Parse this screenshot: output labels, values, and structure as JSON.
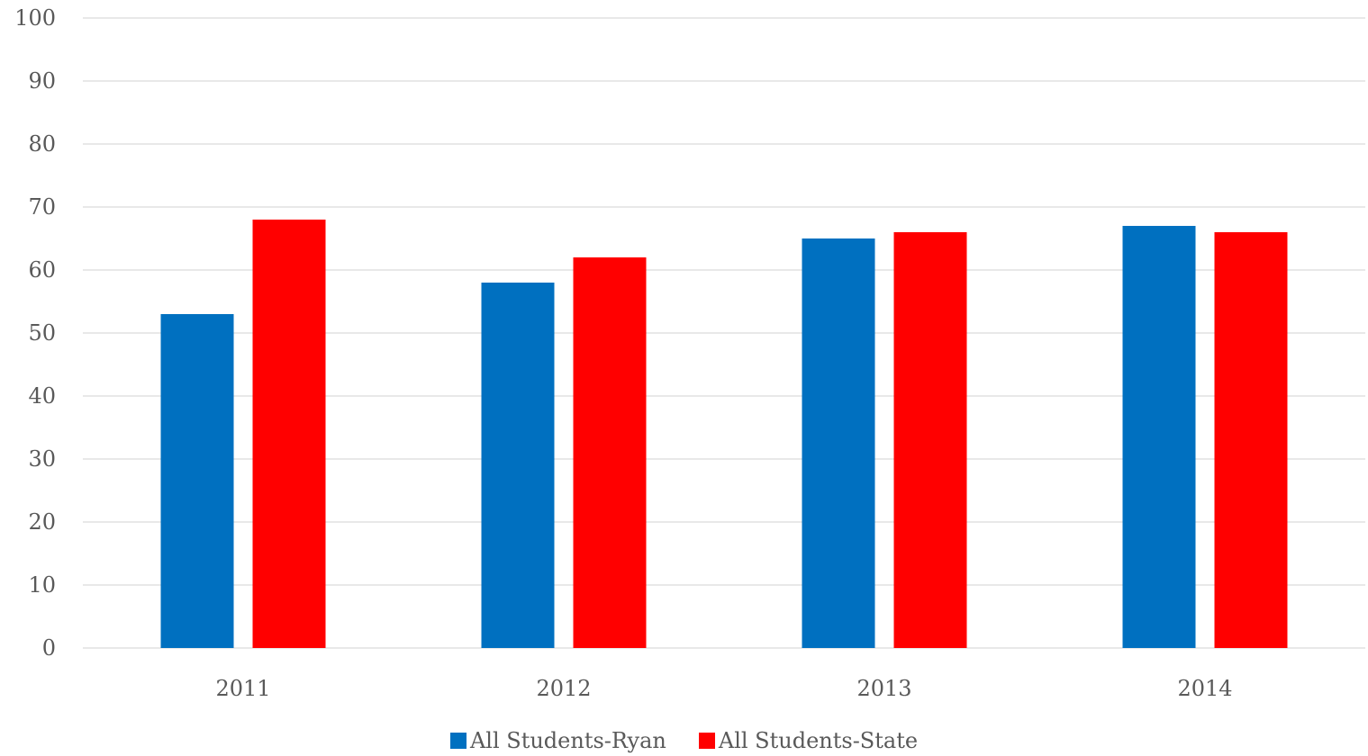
{
  "chart_data": {
    "type": "bar",
    "title": "",
    "xlabel": "",
    "ylabel": "",
    "categories": [
      "2011",
      "2012",
      "2013",
      "2014"
    ],
    "series": [
      {
        "name": "All Students-Ryan",
        "values": [
          53,
          58,
          65,
          67
        ],
        "color": "#0070c0"
      },
      {
        "name": "All Students-State",
        "values": [
          68,
          62,
          66,
          66
        ],
        "color": "#ff0000"
      }
    ],
    "ylim": [
      0,
      100
    ],
    "yticks": [
      "0",
      "10",
      "20",
      "30",
      "40",
      "50",
      "60",
      "70",
      "80",
      "90",
      "100"
    ],
    "grid": true,
    "legend_position": "bottom"
  }
}
